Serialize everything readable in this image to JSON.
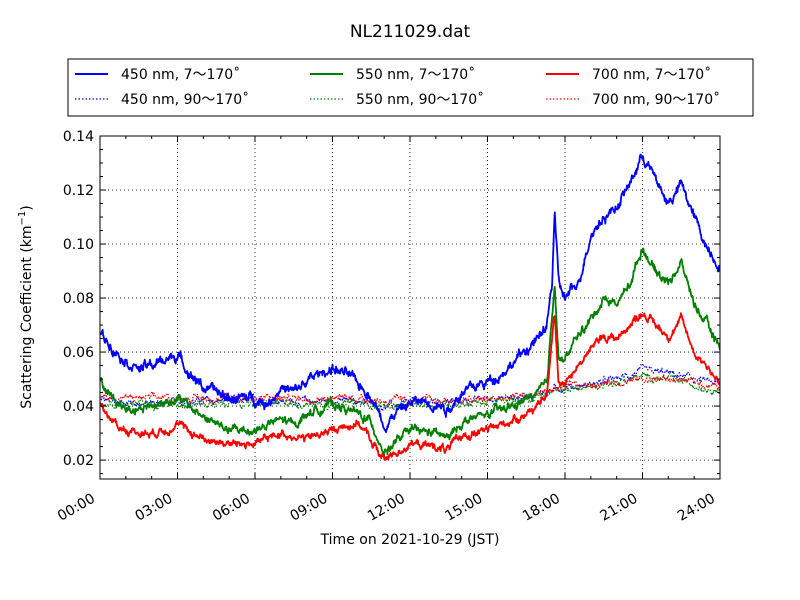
{
  "chart_data": {
    "type": "line",
    "title": "NL211029.dat",
    "xlabel": "Time on 2021-10-29 (JST)",
    "ylabel_main": "Scattering Coefficient (km",
    "ylabel_sup": "−1",
    "ylabel_end": ")",
    "x_unit": "hour",
    "xlim": [
      0,
      24
    ],
    "ylim": [
      0.013,
      0.14
    ],
    "x_ticks": [
      {
        "value": 0,
        "label": "00:00"
      },
      {
        "value": 3,
        "label": "03:00"
      },
      {
        "value": 6,
        "label": "06:00"
      },
      {
        "value": 9,
        "label": "09:00"
      },
      {
        "value": 12,
        "label": "12:00"
      },
      {
        "value": 15,
        "label": "15:00"
      },
      {
        "value": 18,
        "label": "18:00"
      },
      {
        "value": 21,
        "label": "21:00"
      },
      {
        "value": 24,
        "label": "24:00"
      }
    ],
    "y_ticks": [
      {
        "value": 0.02,
        "label": "0.02"
      },
      {
        "value": 0.04,
        "label": "0.04"
      },
      {
        "value": 0.06,
        "label": "0.06"
      },
      {
        "value": 0.08,
        "label": "0.08"
      },
      {
        "value": 0.1,
        "label": "0.10"
      },
      {
        "value": 0.12,
        "label": "0.12"
      },
      {
        "value": 0.14,
        "label": "0.14"
      }
    ],
    "grid": true,
    "legend_position": "top",
    "series": [
      {
        "name": "450 nm, 7～170˚",
        "color": "#0000ff",
        "style": "solid",
        "noise": 0.0013,
        "x": [
          0,
          0.5,
          1,
          1.5,
          2,
          3,
          3.5,
          4,
          5,
          6,
          6.5,
          7,
          7.5,
          8,
          8.5,
          9,
          9.5,
          10,
          10.5,
          11,
          11.5,
          12,
          12.5,
          13,
          13.5,
          14,
          14.5,
          15,
          15.5,
          16,
          16.5,
          17,
          17.3,
          17.5,
          17.6,
          17.75,
          18,
          18.5,
          19,
          19.5,
          20,
          20.5,
          21,
          21.5,
          22,
          22.5,
          23,
          23.5,
          24
        ],
        "y": [
          0.067,
          0.062,
          0.057,
          0.054,
          0.055,
          0.059,
          0.052,
          0.047,
          0.043,
          0.043,
          0.041,
          0.047,
          0.045,
          0.049,
          0.052,
          0.054,
          0.052,
          0.048,
          0.044,
          0.033,
          0.038,
          0.041,
          0.042,
          0.041,
          0.039,
          0.045,
          0.047,
          0.049,
          0.052,
          0.056,
          0.061,
          0.065,
          0.07,
          0.085,
          0.113,
          0.085,
          0.08,
          0.085,
          0.104,
          0.11,
          0.114,
          0.122,
          0.133,
          0.124,
          0.115,
          0.122,
          0.11,
          0.099,
          0.092
        ]
      },
      {
        "name": "550 nm, 7～170˚",
        "color": "#008000",
        "style": "solid",
        "noise": 0.0011,
        "x": [
          0,
          0.5,
          1,
          2,
          3,
          4,
          5,
          6,
          7,
          7.5,
          8,
          9,
          10,
          10.5,
          11,
          11.5,
          12,
          13,
          13.5,
          14,
          15,
          16,
          17,
          17.3,
          17.6,
          17.75,
          18,
          18.5,
          19,
          19.5,
          20,
          20.5,
          21,
          21.5,
          22,
          22.5,
          23,
          23.5,
          24
        ],
        "y": [
          0.049,
          0.043,
          0.039,
          0.04,
          0.043,
          0.036,
          0.031,
          0.031,
          0.035,
          0.033,
          0.037,
          0.041,
          0.037,
          0.034,
          0.023,
          0.027,
          0.031,
          0.03,
          0.028,
          0.034,
          0.037,
          0.04,
          0.045,
          0.048,
          0.087,
          0.058,
          0.057,
          0.066,
          0.072,
          0.08,
          0.078,
          0.085,
          0.099,
          0.09,
          0.086,
          0.093,
          0.078,
          0.07,
          0.062
        ]
      },
      {
        "name": "700 nm, 7～170˚",
        "color": "#ff0000",
        "style": "solid",
        "noise": 0.001,
        "x": [
          0,
          0.5,
          1,
          2,
          3,
          4,
          5,
          6,
          7,
          8,
          9,
          10,
          10.5,
          11,
          11.5,
          12,
          13,
          13.5,
          14,
          15,
          16,
          17,
          17.3,
          17.6,
          17.75,
          18,
          18.5,
          19,
          19.5,
          20,
          20.5,
          21,
          21.5,
          22,
          22.5,
          23,
          23.5,
          24
        ],
        "y": [
          0.041,
          0.034,
          0.031,
          0.03,
          0.033,
          0.028,
          0.026,
          0.026,
          0.03,
          0.028,
          0.031,
          0.034,
          0.027,
          0.02,
          0.023,
          0.026,
          0.025,
          0.024,
          0.029,
          0.031,
          0.035,
          0.04,
          0.044,
          0.075,
          0.049,
          0.049,
          0.055,
          0.061,
          0.066,
          0.065,
          0.07,
          0.075,
          0.07,
          0.066,
          0.072,
          0.06,
          0.055,
          0.048
        ]
      },
      {
        "name": "450 nm, 90～170˚",
        "color": "#0000ff",
        "style": "dotted",
        "noise": 0.0009,
        "x": [
          0,
          2,
          4,
          6,
          8,
          10,
          11,
          12,
          14,
          16,
          17,
          18,
          19,
          20,
          21,
          22,
          23,
          24
        ],
        "y": [
          0.042,
          0.041,
          0.042,
          0.042,
          0.042,
          0.042,
          0.04,
          0.041,
          0.042,
          0.043,
          0.045,
          0.047,
          0.048,
          0.05,
          0.053,
          0.052,
          0.05,
          0.048
        ]
      },
      {
        "name": "550 nm, 90～170˚",
        "color": "#008000",
        "style": "dotted",
        "noise": 0.0009,
        "x": [
          0,
          2,
          4,
          6,
          8,
          10,
          11,
          12,
          14,
          16,
          17,
          18,
          19,
          20,
          21,
          22,
          23,
          24
        ],
        "y": [
          0.041,
          0.041,
          0.041,
          0.041,
          0.041,
          0.041,
          0.04,
          0.04,
          0.041,
          0.042,
          0.044,
          0.046,
          0.047,
          0.049,
          0.051,
          0.05,
          0.048,
          0.046
        ]
      },
      {
        "name": "700 nm, 90～170˚",
        "color": "#ff0000",
        "style": "dotted",
        "noise": 0.0009,
        "x": [
          0,
          2,
          4,
          6,
          8,
          10,
          11,
          12,
          14,
          16,
          17,
          18,
          19,
          20,
          21,
          22,
          23,
          24
        ],
        "y": [
          0.043,
          0.043,
          0.043,
          0.043,
          0.043,
          0.043,
          0.042,
          0.042,
          0.042,
          0.043,
          0.045,
          0.047,
          0.048,
          0.049,
          0.05,
          0.05,
          0.049,
          0.047
        ]
      }
    ],
    "legend_order": [
      0,
      1,
      2,
      3,
      4,
      5
    ]
  }
}
